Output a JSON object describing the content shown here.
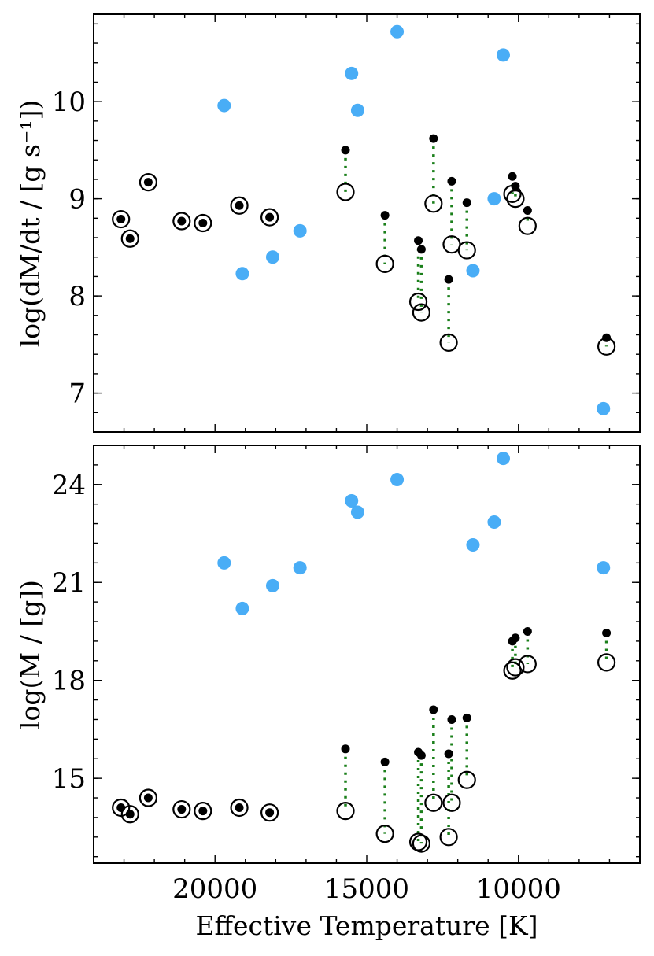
{
  "chart_data": [
    {
      "type": "scatter",
      "panel": "top",
      "ylabel": "log(dM/dt / [g s⁻¹])",
      "xlabel": "",
      "xlim": [
        24000,
        6000
      ],
      "ylim": [
        6.6,
        10.9
      ],
      "yticks": [
        7,
        8,
        9,
        10
      ],
      "ytick_labels": [
        "7",
        "8",
        "9",
        "10"
      ],
      "xticks": [
        20000,
        15000,
        10000
      ],
      "colors": {
        "blue": "#3fa9f5",
        "black": "#000000",
        "green": "#1a7f1a"
      },
      "paired": [
        {
          "t": 23100,
          "filled": 8.79,
          "open": 8.79
        },
        {
          "t": 22800,
          "filled": 8.59,
          "open": 8.59
        },
        {
          "t": 22200,
          "filled": 9.17,
          "open": 9.17
        },
        {
          "t": 21100,
          "filled": 8.77,
          "open": 8.77
        },
        {
          "t": 20400,
          "filled": 8.75,
          "open": 8.75
        },
        {
          "t": 19200,
          "filled": 8.93,
          "open": 8.93
        },
        {
          "t": 18200,
          "filled": 8.81,
          "open": 8.81
        },
        {
          "t": 15700,
          "filled": 9.5,
          "open": 9.07
        },
        {
          "t": 14400,
          "filled": 8.83,
          "open": 8.33
        },
        {
          "t": 13300,
          "filled": 8.57,
          "open": 7.94
        },
        {
          "t": 13200,
          "filled": 8.48,
          "open": 7.83
        },
        {
          "t": 12300,
          "filled": 8.17,
          "open": 7.52
        },
        {
          "t": 12800,
          "filled": 9.62,
          "open": 8.95
        },
        {
          "t": 12200,
          "filled": 9.18,
          "open": 8.53
        },
        {
          "t": 11700,
          "filled": 8.96,
          "open": 8.47
        },
        {
          "t": 10200,
          "filled": 9.23,
          "open": 9.05
        },
        {
          "t": 10100,
          "filled": 9.13,
          "open": 9.0
        },
        {
          "t": 9700,
          "filled": 8.88,
          "open": 8.72
        },
        {
          "t": 7100,
          "filled": 7.57,
          "open": 7.48
        }
      ],
      "blue_points": [
        {
          "t": 19700,
          "v": 9.96
        },
        {
          "t": 19100,
          "v": 8.23
        },
        {
          "t": 18100,
          "v": 8.4
        },
        {
          "t": 17200,
          "v": 8.67
        },
        {
          "t": 15500,
          "v": 10.29
        },
        {
          "t": 15300,
          "v": 9.91
        },
        {
          "t": 14000,
          "v": 10.72
        },
        {
          "t": 11500,
          "v": 8.26
        },
        {
          "t": 10800,
          "v": 9.0
        },
        {
          "t": 10500,
          "v": 10.48
        },
        {
          "t": 7200,
          "v": 6.84
        }
      ]
    },
    {
      "type": "scatter",
      "panel": "bottom",
      "ylabel": "log(M / [g])",
      "xlabel": "Effective Temperature [K]",
      "xlim": [
        24000,
        6000
      ],
      "ylim": [
        12.4,
        25.2
      ],
      "yticks": [
        15,
        18,
        21,
        24
      ],
      "ytick_labels": [
        "15",
        "18",
        "21",
        "24"
      ],
      "xticks": [
        20000,
        15000,
        10000
      ],
      "xtick_labels": [
        "20000",
        "15000",
        "10000"
      ],
      "paired": [
        {
          "t": 23100,
          "filled": 14.1,
          "open": 14.1
        },
        {
          "t": 22800,
          "filled": 13.9,
          "open": 13.9
        },
        {
          "t": 22200,
          "filled": 14.4,
          "open": 14.4
        },
        {
          "t": 21100,
          "filled": 14.05,
          "open": 14.05
        },
        {
          "t": 20400,
          "filled": 14.0,
          "open": 14.0
        },
        {
          "t": 19200,
          "filled": 14.1,
          "open": 14.1
        },
        {
          "t": 18200,
          "filled": 13.95,
          "open": 13.95
        },
        {
          "t": 15700,
          "filled": 15.9,
          "open": 14.0
        },
        {
          "t": 14400,
          "filled": 15.5,
          "open": 13.3
        },
        {
          "t": 13300,
          "filled": 15.8,
          "open": 13.05
        },
        {
          "t": 13200,
          "filled": 15.7,
          "open": 13.0
        },
        {
          "t": 12800,
          "filled": 17.1,
          "open": 14.25
        },
        {
          "t": 12300,
          "filled": 15.75,
          "open": 13.2
        },
        {
          "t": 12200,
          "filled": 16.8,
          "open": 14.25
        },
        {
          "t": 11700,
          "filled": 16.85,
          "open": 14.95
        },
        {
          "t": 10200,
          "filled": 19.2,
          "open": 18.3
        },
        {
          "t": 10100,
          "filled": 19.3,
          "open": 18.4
        },
        {
          "t": 9700,
          "filled": 19.5,
          "open": 18.5
        },
        {
          "t": 7100,
          "filled": 19.45,
          "open": 18.55
        }
      ],
      "blue_points": [
        {
          "t": 19700,
          "v": 21.6
        },
        {
          "t": 19100,
          "v": 20.2
        },
        {
          "t": 18100,
          "v": 20.9
        },
        {
          "t": 17200,
          "v": 21.45
        },
        {
          "t": 15500,
          "v": 23.5
        },
        {
          "t": 15300,
          "v": 23.15
        },
        {
          "t": 14000,
          "v": 24.15
        },
        {
          "t": 11500,
          "v": 22.15
        },
        {
          "t": 10800,
          "v": 22.85
        },
        {
          "t": 10500,
          "v": 24.8
        },
        {
          "t": 7200,
          "v": 21.45
        }
      ]
    }
  ]
}
